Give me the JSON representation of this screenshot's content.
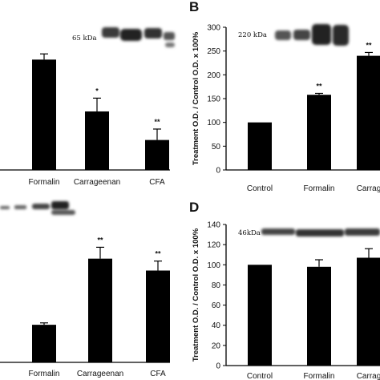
{
  "chart_data": [
    {
      "panel": "A",
      "type": "bar",
      "panel_label": "",
      "blot_label": "65 kDa",
      "categories": [
        "Formalin",
        "Carrageenan",
        "CFA"
      ],
      "values": [
        232,
        123,
        63
      ],
      "errors": [
        12,
        28,
        23
      ],
      "significance": [
        "",
        "*",
        "**"
      ],
      "ylim": [
        0,
        300
      ],
      "yticks": [],
      "ylabel": "",
      "xlabel": "",
      "title": ""
    },
    {
      "panel": "B",
      "type": "bar",
      "panel_label": "B",
      "blot_label": "220 kDa",
      "categories": [
        "Control",
        "Formalin",
        "Carrag"
      ],
      "values": [
        100,
        158,
        240
      ],
      "errors": [
        0,
        3,
        7
      ],
      "significance": [
        "",
        "**",
        "**"
      ],
      "ylim": [
        0,
        300
      ],
      "yticks": [
        "0",
        "50",
        "100",
        "150",
        "200",
        "250",
        "300"
      ],
      "ylabel": "Treatment O.D. / Control O.D. x 100%",
      "xlabel": "",
      "title": ""
    },
    {
      "panel": "C",
      "type": "bar",
      "panel_label": "",
      "blot_label": "",
      "categories": [
        "Formalin",
        "Carrageenan",
        "CFA"
      ],
      "values": [
        79,
        218,
        193
      ],
      "errors": [
        4,
        24,
        20
      ],
      "significance": [
        "",
        "**",
        "**"
      ],
      "ylim": [
        0,
        300
      ],
      "yticks": [],
      "ylabel": "",
      "xlabel": "",
      "title": ""
    },
    {
      "panel": "D",
      "type": "bar",
      "panel_label": "D",
      "blot_label": "46kDa",
      "categories": [
        "Control",
        "Formalin",
        "Carrag"
      ],
      "values": [
        100,
        98,
        107
      ],
      "errors": [
        0,
        7,
        9
      ],
      "significance": [
        "",
        "",
        ""
      ],
      "ylim": [
        0,
        140
      ],
      "yticks": [
        "0",
        "20",
        "40",
        "60",
        "80",
        "100",
        "120",
        "140"
      ],
      "ylabel": "Treatment O.D. / Control O.D. x 100%",
      "xlabel": "",
      "title": ""
    }
  ]
}
